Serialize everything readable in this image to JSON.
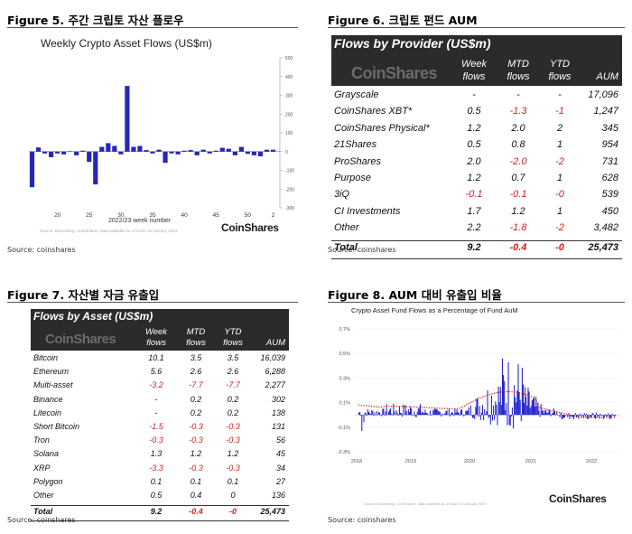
{
  "fig5": {
    "title": "Figure 5. 주간 크립토 자산 플로우",
    "source": "Source: coinshares",
    "chart": {
      "title": "Weekly Crypto Asset Flows (US$m)",
      "xlabel": "2022/23 week number",
      "footnote": "Source: Bloomberg, CoinShares, data available as of close 13 January 2023",
      "brand": "CoinShares"
    }
  },
  "fig6": {
    "title": "Figure 6. 크립토 펀드 AUM",
    "source": "Source: coinshares",
    "table": {
      "header": "Flows by Provider (US$m)",
      "brand": "CoinShares",
      "columns": [
        "Week flows",
        "MTD flows",
        "YTD flows",
        "AUM"
      ],
      "col_top": [
        "Week",
        "MTD",
        "YTD",
        ""
      ],
      "col_bottom": [
        "flows",
        "flows",
        "flows",
        "AUM"
      ],
      "rows": [
        {
          "name": "Grayscale",
          "week": "-",
          "mtd": "-",
          "ytd": "-",
          "aum": "17,096"
        },
        {
          "name": "CoinShares XBT*",
          "week": "0.5",
          "mtd": "-1.3",
          "ytd": "-1",
          "aum": "1,247"
        },
        {
          "name": "CoinShares Physical*",
          "week": "1.2",
          "mtd": "2.0",
          "ytd": "2",
          "aum": "345"
        },
        {
          "name": "21Shares",
          "week": "0.5",
          "mtd": "0.8",
          "ytd": "1",
          "aum": "954"
        },
        {
          "name": "ProShares",
          "week": "2.0",
          "mtd": "-2.0",
          "ytd": "-2",
          "aum": "731"
        },
        {
          "name": "Purpose",
          "week": "1.2",
          "mtd": "0.7",
          "ytd": "1",
          "aum": "628"
        },
        {
          "name": "3iQ",
          "week": "-0.1",
          "mtd": "-0.1",
          "ytd": "-0",
          "aum": "539"
        },
        {
          "name": "CI Investments",
          "week": "1.7",
          "mtd": "1.2",
          "ytd": "1",
          "aum": "450"
        },
        {
          "name": "Other",
          "week": "2.2",
          "mtd": "-1.8",
          "ytd": "-2",
          "aum": "3,482"
        }
      ],
      "total": {
        "name": "Total",
        "week": "9.2",
        "mtd": "-0.4",
        "ytd": "-0",
        "aum": "25,473"
      }
    }
  },
  "fig7": {
    "title": "Figure 7. 자산별 자금 유출입",
    "source": "Source: coinshares",
    "table": {
      "header": "Flows by Asset (US$m)",
      "brand": "CoinShares",
      "col_top": [
        "Week",
        "MTD",
        "YTD",
        ""
      ],
      "col_bottom": [
        "flows",
        "flows",
        "flows",
        "AUM"
      ],
      "rows": [
        {
          "name": "Bitcoin",
          "week": "10.1",
          "mtd": "3.5",
          "ytd": "3.5",
          "aum": "16,039"
        },
        {
          "name": "Ethereum",
          "week": "5.6",
          "mtd": "2.6",
          "ytd": "2.6",
          "aum": "6,288"
        },
        {
          "name": "Multi-asset",
          "week": "-3.2",
          "mtd": "-7.7",
          "ytd": "-7.7",
          "aum": "2,277"
        },
        {
          "name": "Binance",
          "week": "-",
          "mtd": "0.2",
          "ytd": "0.2",
          "aum": "302"
        },
        {
          "name": "Litecoin",
          "week": "-",
          "mtd": "0.2",
          "ytd": "0.2",
          "aum": "138"
        },
        {
          "name": "Short Bitcoin",
          "week": "-1.5",
          "mtd": "-0.3",
          "ytd": "-0.3",
          "aum": "131"
        },
        {
          "name": "Tron",
          "week": "-0.3",
          "mtd": "-0.3",
          "ytd": "-0.3",
          "aum": "56"
        },
        {
          "name": "Solana",
          "week": "1.3",
          "mtd": "1.2",
          "ytd": "1.2",
          "aum": "45"
        },
        {
          "name": "XRP",
          "week": "-3.3",
          "mtd": "-0.3",
          "ytd": "-0.3",
          "aum": "34"
        },
        {
          "name": "Polygon",
          "week": "0.1",
          "mtd": "0.1",
          "ytd": "0.1",
          "aum": "27"
        },
        {
          "name": "Other",
          "week": "0.5",
          "mtd": "0.4",
          "ytd": "0",
          "aum": "136"
        }
      ],
      "total": {
        "name": "Total",
        "week": "9.2",
        "mtd": "-0.4",
        "ytd": "-0",
        "aum": "25,473"
      }
    }
  },
  "fig8": {
    "title": "Figure 8. AUM 대비 유출입 비율",
    "source": "Source: coinshares",
    "chart": {
      "title": "Crypto Asset Fund Flows as a Percentage of Fund AuM",
      "footnote": "Source: Bloomberg, CoinShares, data available as of close 13 January 2023",
      "brand": "CoinShares"
    }
  },
  "chart_data": [
    {
      "type": "bar",
      "title": "Weekly Crypto Asset Flows (US$m)",
      "xlabel": "2022/23 week number",
      "ylabel": "",
      "x": [
        16,
        17,
        18,
        19,
        20,
        21,
        22,
        23,
        24,
        25,
        26,
        27,
        28,
        29,
        30,
        31,
        32,
        33,
        34,
        35,
        36,
        37,
        38,
        39,
        40,
        41,
        42,
        43,
        44,
        45,
        46,
        47,
        48,
        49,
        50,
        51,
        52,
        1,
        2
      ],
      "values": [
        -190,
        22,
        -10,
        -30,
        -10,
        -15,
        2,
        -20,
        5,
        -55,
        -175,
        25,
        45,
        30,
        -15,
        350,
        25,
        30,
        8,
        -10,
        10,
        -60,
        -10,
        -15,
        5,
        8,
        -20,
        10,
        -10,
        5,
        20,
        15,
        -20,
        25,
        -12,
        -20,
        -25,
        10,
        10
      ],
      "xticks": [
        20,
        25,
        30,
        35,
        40,
        45,
        50,
        2
      ],
      "yticks": [
        -300,
        -200,
        -100,
        0,
        100,
        200,
        300,
        400,
        500
      ],
      "ylim": [
        -300,
        500
      ],
      "color": "#2626b8",
      "grid": false
    },
    {
      "type": "area",
      "title": "Crypto Asset Fund Flows as a Percentage of Fund AuM",
      "xticks": [
        "2018",
        "2019",
        "2020",
        "2021",
        "2022"
      ],
      "yticks": [
        "-0.3%",
        "-0.1%",
        "0.1%",
        "0.3%",
        "0.5%",
        "0.7%"
      ],
      "ylim": [
        -0.3,
        0.7
      ],
      "series": [
        {
          "kind": "area",
          "color": "#1f1fcc"
        },
        {
          "kind": "line",
          "style": "dotted",
          "color": "#e02020"
        }
      ]
    }
  ]
}
